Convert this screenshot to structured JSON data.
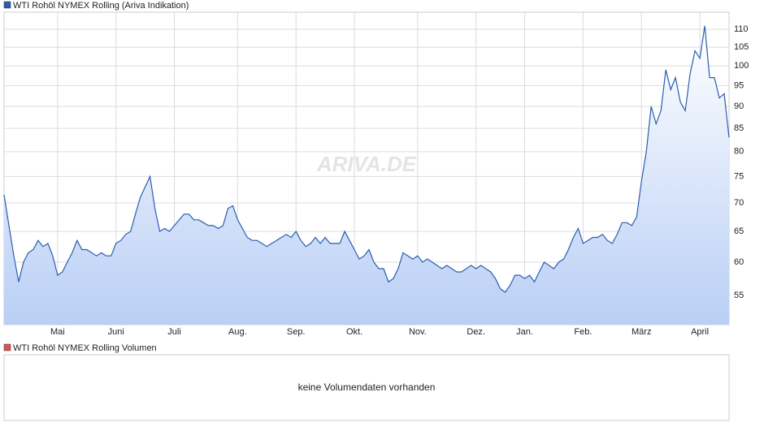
{
  "chart_data": {
    "type": "area",
    "log": true,
    "grid": true,
    "watermark": "ARIVA.DE",
    "series": [
      {
        "name": "WTI Rohöl NYMEX Rolling (Ariva Indikation)",
        "color": "#2a5db0",
        "values": [
          71.5,
          66,
          61,
          57,
          60,
          61.5,
          62,
          63.5,
          62.5,
          63,
          61,
          58,
          58.5,
          60,
          61.5,
          63.5,
          62,
          62,
          61.5,
          61,
          61.5,
          61,
          61,
          63,
          63.5,
          64.5,
          65,
          68,
          71,
          73,
          75,
          69,
          65,
          65.5,
          65,
          66,
          67,
          68,
          68,
          67,
          67,
          66.5,
          66,
          66,
          65.5,
          66,
          69,
          69.5,
          67,
          65.5,
          64,
          63.5,
          63.5,
          63,
          62.5,
          63,
          63.5,
          64,
          64.5,
          64,
          65,
          63.5,
          62.5,
          63,
          64,
          63,
          64,
          63,
          63,
          63,
          65,
          63.5,
          62,
          60.5,
          61,
          62,
          60,
          59,
          59,
          57,
          57.5,
          59,
          61.5,
          61,
          60.5,
          61,
          60,
          60.5,
          60,
          59.5,
          59,
          59.5,
          59,
          58.5,
          58.5,
          59,
          59.5,
          59,
          59.5,
          59,
          58.5,
          57.5,
          56,
          55.5,
          56.5,
          58,
          58,
          57.5,
          58,
          57,
          58.5,
          60,
          59.5,
          59,
          60,
          60.5,
          62,
          64,
          65.5,
          63,
          63.5,
          64,
          64,
          64.5,
          63.5,
          63,
          64.5,
          66.5,
          66.5,
          66,
          67.5,
          74,
          80,
          90,
          86,
          89,
          99,
          94,
          97,
          91,
          89,
          98,
          104,
          102,
          111,
          97,
          97,
          92,
          93,
          83
        ]
      }
    ],
    "categories": [
      null,
      null,
      null,
      null,
      null,
      null,
      null,
      null,
      null,
      null,
      null,
      "Mai",
      null,
      null,
      null,
      null,
      null,
      null,
      null,
      null,
      null,
      null,
      null,
      "Juni",
      null,
      null,
      null,
      null,
      null,
      null,
      null,
      null,
      null,
      null,
      null,
      "Juli",
      null,
      null,
      null,
      null,
      null,
      null,
      null,
      null,
      null,
      null,
      null,
      null,
      "Aug.",
      null,
      null,
      null,
      null,
      null,
      null,
      null,
      null,
      null,
      null,
      null,
      "Sep.",
      null,
      null,
      null,
      null,
      null,
      null,
      null,
      null,
      null,
      null,
      null,
      "Okt.",
      null,
      null,
      null,
      null,
      null,
      null,
      null,
      null,
      null,
      null,
      null,
      null,
      "Nov.",
      null,
      null,
      null,
      null,
      null,
      null,
      null,
      null,
      null,
      null,
      null,
      "Dez.",
      null,
      null,
      null,
      null,
      null,
      null,
      null,
      null,
      null,
      "Jan.",
      null,
      null,
      null,
      null,
      null,
      null,
      null,
      null,
      null,
      null,
      null,
      "Feb.",
      null,
      null,
      null,
      null,
      null,
      null,
      null,
      null,
      null,
      null,
      null,
      "März",
      null,
      null,
      null,
      null,
      null,
      null,
      null,
      null,
      null,
      null,
      null,
      "April",
      null,
      null,
      null,
      null,
      null,
      null
    ],
    "ylim": [
      51,
      115
    ],
    "yticks": [
      55,
      60,
      65,
      70,
      75,
      80,
      85,
      90,
      95,
      100,
      105,
      110
    ]
  },
  "volume_panel": {
    "legend": "WTI Rohöl NYMEX Rolling Volumen",
    "color": "#d9534f",
    "message": "keine Volumendaten vorhanden"
  }
}
